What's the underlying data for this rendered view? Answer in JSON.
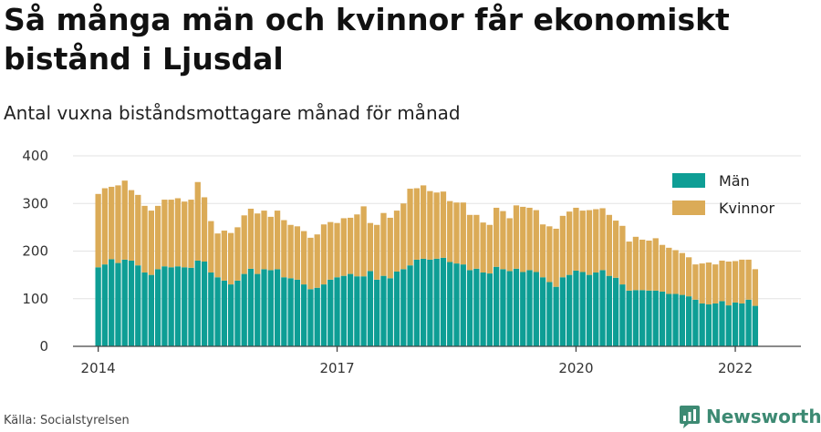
{
  "header": {
    "title": "Så många män och kvinnor får ekonomiskt bistånd i Ljusdal",
    "subtitle": "Antal vuxna biståndsmottagare månad för månad"
  },
  "footer": {
    "source": "Källa: Socialstyrelsen",
    "brand": "Newsworthy",
    "brand_color": "#3d8a73"
  },
  "chart_data": {
    "type": "bar",
    "stacked": true,
    "start": "2014-01",
    "x_tick_labels": [
      "2014",
      "2017",
      "2020",
      "2022"
    ],
    "y_ticks": [
      0,
      100,
      200,
      300,
      400
    ],
    "ylim": [
      0,
      400
    ],
    "grid": true,
    "legend_position": "top-right",
    "series": [
      {
        "name": "Män",
        "color": "#0e9e95",
        "values": [
          166,
          172,
          183,
          175,
          182,
          180,
          170,
          155,
          150,
          162,
          168,
          166,
          168,
          166,
          165,
          180,
          178,
          155,
          145,
          138,
          130,
          138,
          152,
          163,
          152,
          162,
          160,
          162,
          145,
          143,
          140,
          130,
          120,
          123,
          130,
          140,
          145,
          148,
          152,
          147,
          147,
          158,
          140,
          148,
          143,
          157,
          162,
          170,
          182,
          184,
          182,
          184,
          186,
          177,
          174,
          172,
          160,
          163,
          155,
          153,
          167,
          162,
          158,
          163,
          156,
          160,
          156,
          145,
          135,
          125,
          145,
          150,
          159,
          156,
          150,
          155,
          160,
          148,
          144,
          130,
          117,
          118,
          118,
          117,
          117,
          115,
          110,
          110,
          108,
          105,
          98,
          90,
          88,
          90,
          95,
          86,
          92,
          90,
          98,
          85
        ]
      },
      {
        "name": "Kvinnor",
        "color": "#dbab57",
        "values": [
          154,
          160,
          152,
          163,
          166,
          148,
          148,
          140,
          135,
          133,
          140,
          142,
          143,
          138,
          143,
          165,
          135,
          108,
          92,
          105,
          108,
          112,
          123,
          126,
          127,
          123,
          112,
          123,
          120,
          112,
          112,
          112,
          108,
          112,
          126,
          121,
          114,
          121,
          118,
          130,
          147,
          101,
          115,
          132,
          127,
          128,
          138,
          161,
          150,
          154,
          144,
          139,
          139,
          128,
          128,
          130,
          116,
          113,
          105,
          102,
          124,
          122,
          111,
          133,
          137,
          131,
          130,
          111,
          117,
          122,
          129,
          133,
          132,
          129,
          136,
          133,
          130,
          128,
          120,
          123,
          103,
          112,
          106,
          105,
          110,
          98,
          97,
          92,
          88,
          82,
          74,
          84,
          88,
          82,
          85,
          92,
          87,
          92,
          84,
          77
        ]
      }
    ]
  }
}
